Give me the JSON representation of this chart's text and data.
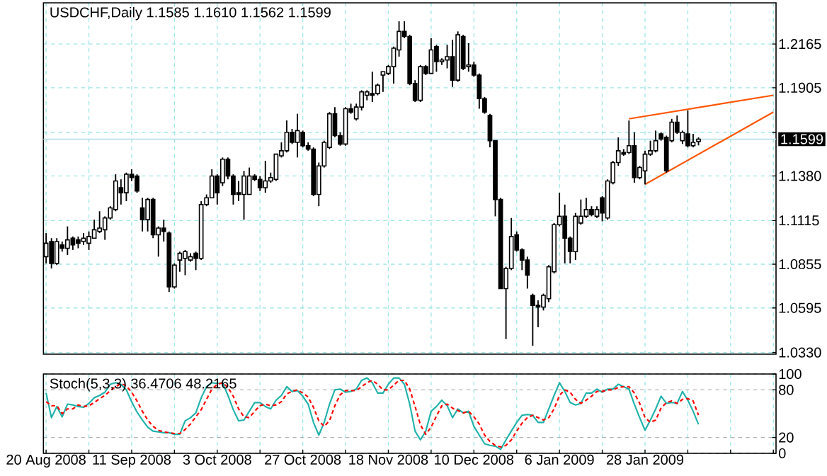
{
  "chart_data": [
    {
      "type": "candlestick",
      "title": "USDCHF,Daily 1.1585 1.1610 1.1562 1.1599",
      "categories": [
        null,
        null,
        null,
        null,
        null,
        null,
        null,
        null,
        null,
        null,
        null,
        null,
        null,
        null,
        null,
        null,
        null,
        null,
        null,
        null,
        null,
        null,
        null,
        null,
        null,
        null,
        null,
        null,
        null,
        null,
        null,
        null,
        null,
        null,
        null,
        null,
        null,
        null,
        null,
        null,
        null,
        null,
        null,
        null,
        null,
        null,
        null,
        null,
        null,
        null,
        null,
        null,
        null,
        null,
        null,
        null,
        null,
        null,
        null,
        null,
        null,
        null,
        null,
        null,
        null,
        null,
        null,
        null,
        null,
        null,
        null,
        null,
        null,
        null,
        null,
        null,
        null,
        null,
        null,
        null,
        null,
        null,
        null,
        null,
        null,
        null,
        null,
        null,
        null,
        null,
        null,
        null,
        null,
        null,
        null,
        null,
        null,
        null,
        null,
        null,
        null,
        null,
        null,
        null,
        null,
        null,
        null,
        null,
        null,
        null,
        null,
        null,
        null,
        null,
        null,
        null,
        null,
        null,
        null,
        null,
        null,
        null,
        null,
        null,
        null,
        null,
        null,
        null,
        null,
        null,
        null,
        null,
        null,
        null,
        null,
        null,
        null
      ],
      "ohlc": [
        [
          1.09,
          1.104,
          1.086,
          1.098
        ],
        [
          1.099,
          1.101,
          1.083,
          1.086
        ],
        [
          1.086,
          1.101,
          1.085,
          1.099
        ],
        [
          1.097,
          1.099,
          1.093,
          1.095
        ],
        [
          1.095,
          1.108,
          1.091,
          1.1
        ],
        [
          1.101,
          1.102,
          1.094,
          1.097
        ],
        [
          1.1,
          1.102,
          1.095,
          1.098
        ],
        [
          1.099,
          1.104,
          1.097,
          1.101
        ],
        [
          1.098,
          1.105,
          1.094,
          1.102
        ],
        [
          1.101,
          1.112,
          1.101,
          1.106
        ],
        [
          1.105,
          1.117,
          1.104,
          1.107
        ],
        [
          1.106,
          1.114,
          1.1,
          1.113
        ],
        [
          1.113,
          1.12,
          1.112,
          1.119
        ],
        [
          1.118,
          1.139,
          1.117,
          1.135
        ],
        [
          1.131,
          1.136,
          1.121,
          1.128
        ],
        [
          1.128,
          1.14,
          1.123,
          1.139
        ],
        [
          1.139,
          1.142,
          1.135,
          1.137
        ],
        [
          1.138,
          1.139,
          1.128,
          1.129
        ],
        [
          1.119,
          1.125,
          1.105,
          1.112
        ],
        [
          1.112,
          1.125,
          1.105,
          1.124
        ],
        [
          1.124,
          1.125,
          1.101,
          1.103
        ],
        [
          1.103,
          1.108,
          1.09,
          1.107
        ],
        [
          1.107,
          1.112,
          1.099,
          1.105
        ],
        [
          1.104,
          1.105,
          1.069,
          1.072
        ],
        [
          1.072,
          1.086,
          1.071,
          1.085
        ],
        [
          1.088,
          1.093,
          1.081,
          1.092
        ],
        [
          1.089,
          1.094,
          1.079,
          1.093
        ],
        [
          1.088,
          1.092,
          1.087,
          1.09
        ],
        [
          1.092,
          1.093,
          1.082,
          1.089
        ],
        [
          1.089,
          1.123,
          1.088,
          1.121
        ],
        [
          1.121,
          1.127,
          1.12,
          1.125
        ],
        [
          1.125,
          1.142,
          1.125,
          1.138
        ],
        [
          1.138,
          1.139,
          1.121,
          1.128
        ],
        [
          1.134,
          1.149,
          1.132,
          1.148
        ],
        [
          1.148,
          1.149,
          1.136,
          1.138
        ],
        [
          1.138,
          1.139,
          1.121,
          1.127
        ],
        [
          1.128,
          1.135,
          1.123,
          1.127
        ],
        [
          1.127,
          1.141,
          1.112,
          1.138
        ],
        [
          1.127,
          1.143,
          1.127,
          1.138
        ],
        [
          1.138,
          1.139,
          1.135,
          1.136
        ],
        [
          1.136,
          1.138,
          1.129,
          1.131
        ],
        [
          1.131,
          1.147,
          1.128,
          1.135
        ],
        [
          1.135,
          1.14,
          1.134,
          1.137
        ],
        [
          1.136,
          1.151,
          1.135,
          1.151
        ],
        [
          1.15,
          1.158,
          1.149,
          1.153
        ],
        [
          1.153,
          1.171,
          1.152,
          1.164
        ],
        [
          1.164,
          1.166,
          1.157,
          1.158
        ],
        [
          1.158,
          1.175,
          1.149,
          1.165
        ],
        [
          1.164,
          1.165,
          1.155,
          1.156
        ],
        [
          1.156,
          1.158,
          1.153,
          1.154
        ],
        [
          1.154,
          1.155,
          1.126,
          1.127
        ],
        [
          1.127,
          1.146,
          1.12,
          1.144
        ],
        [
          1.144,
          1.159,
          1.143,
          1.158
        ],
        [
          1.155,
          1.176,
          1.154,
          1.175
        ],
        [
          1.175,
          1.179,
          1.161,
          1.162
        ],
        [
          1.162,
          1.164,
          1.156,
          1.157
        ],
        [
          1.157,
          1.179,
          1.156,
          1.178
        ],
        [
          1.178,
          1.181,
          1.175,
          1.176
        ],
        [
          1.172,
          1.181,
          1.171,
          1.179
        ],
        [
          1.179,
          1.189,
          1.177,
          1.188
        ],
        [
          1.186,
          1.189,
          1.183,
          1.188
        ],
        [
          1.187,
          1.2,
          1.182,
          1.186
        ],
        [
          1.187,
          1.193,
          1.186,
          1.192
        ],
        [
          1.198,
          1.2,
          1.188,
          1.2
        ],
        [
          1.199,
          1.204,
          1.198,
          1.203
        ],
        [
          1.203,
          1.215,
          1.193,
          1.214
        ],
        [
          1.213,
          1.23,
          1.209,
          1.224
        ],
        [
          1.224,
          1.23,
          1.22,
          1.221
        ],
        [
          1.221,
          1.222,
          1.192,
          1.193
        ],
        [
          1.193,
          1.195,
          1.182,
          1.183
        ],
        [
          1.183,
          1.204,
          1.182,
          1.203
        ],
        [
          1.203,
          1.204,
          1.198,
          1.199
        ],
        [
          1.199,
          1.22,
          1.199,
          1.213
        ],
        [
          1.215,
          1.216,
          1.2,
          1.206
        ],
        [
          1.206,
          1.208,
          1.204,
          1.207
        ],
        [
          1.207,
          1.216,
          1.202,
          1.209
        ],
        [
          1.209,
          1.219,
          1.191,
          1.195
        ],
        [
          1.195,
          1.224,
          1.194,
          1.222
        ],
        [
          1.221,
          1.222,
          1.201,
          1.202
        ],
        [
          1.203,
          1.217,
          1.2,
          1.204
        ],
        [
          1.204,
          1.206,
          1.197,
          1.198
        ],
        [
          1.198,
          1.199,
          1.178,
          1.184
        ],
        [
          1.184,
          1.185,
          1.175,
          1.176
        ],
        [
          1.174,
          1.175,
          1.155,
          1.159
        ],
        [
          1.159,
          1.159,
          1.114,
          1.124
        ],
        [
          1.124,
          1.125,
          1.071,
          1.071
        ],
        [
          1.071,
          1.084,
          1.041,
          1.083
        ],
        [
          1.083,
          1.113,
          1.082,
          1.102
        ],
        [
          1.103,
          1.105,
          1.093,
          1.094
        ],
        [
          1.094,
          1.095,
          1.082,
          1.088
        ],
        [
          1.088,
          1.09,
          1.071,
          1.079
        ],
        [
          1.067,
          1.068,
          1.037,
          1.061
        ],
        [
          1.061,
          1.064,
          1.048,
          1.06
        ],
        [
          1.06,
          1.068,
          1.058,
          1.067
        ],
        [
          1.065,
          1.085,
          1.063,
          1.084
        ],
        [
          1.081,
          1.11,
          1.08,
          1.109
        ],
        [
          1.109,
          1.128,
          1.108,
          1.114
        ],
        [
          1.114,
          1.121,
          1.086,
          1.101
        ],
        [
          1.101,
          1.102,
          1.086,
          1.093
        ],
        [
          1.093,
          1.116,
          1.088,
          1.114
        ],
        [
          1.11,
          1.124,
          1.109,
          1.114
        ],
        [
          1.114,
          1.125,
          1.113,
          1.118
        ],
        [
          1.118,
          1.12,
          1.114,
          1.115
        ],
        [
          1.114,
          1.12,
          1.113,
          1.118
        ],
        [
          1.125,
          1.126,
          1.111,
          1.116
        ],
        [
          1.113,
          1.136,
          1.112,
          1.135
        ],
        [
          1.134,
          1.147,
          1.133,
          1.146
        ],
        [
          1.146,
          1.161,
          1.144,
          1.153
        ],
        [
          1.152,
          1.154,
          1.15,
          1.151
        ],
        [
          1.152,
          1.171,
          1.151,
          1.156
        ],
        [
          1.156,
          1.164,
          1.134,
          1.137
        ],
        [
          1.137,
          1.144,
          1.136,
          1.143
        ],
        [
          1.141,
          1.153,
          1.133,
          1.151
        ],
        [
          1.151,
          1.159,
          1.15,
          1.153
        ],
        [
          1.153,
          1.165,
          1.152,
          1.159
        ],
        [
          1.163,
          1.164,
          1.159,
          1.16
        ],
        [
          1.161,
          1.162,
          1.14,
          1.141
        ],
        [
          1.159,
          1.172,
          1.158,
          1.17
        ],
        [
          1.17,
          1.174,
          1.163,
          1.164
        ],
        [
          1.159,
          1.165,
          1.157,
          1.164
        ],
        [
          1.163,
          1.177,
          1.155,
          1.156
        ],
        [
          1.156,
          1.163,
          1.155,
          1.158
        ],
        [
          1.1585,
          1.161,
          1.1562,
          1.1599
        ],
        null,
        null,
        null,
        null,
        null,
        null,
        null,
        null,
        null,
        null,
        null,
        null,
        null,
        null
      ],
      "series": [
        {
          "type": "line",
          "color": "#ff5500",
          "values": [
            null,
            null,
            null,
            null,
            null,
            null,
            null,
            null,
            null,
            null,
            null,
            null,
            null,
            null,
            null,
            null,
            null,
            null,
            null,
            null,
            null,
            null,
            null,
            null,
            null,
            null,
            null,
            null,
            null,
            null,
            null,
            null,
            null,
            null,
            null,
            null,
            null,
            null,
            null,
            null,
            null,
            null,
            null,
            null,
            null,
            null,
            null,
            null,
            null,
            null,
            null,
            null,
            null,
            null,
            null,
            null,
            null,
            null,
            null,
            null,
            null,
            null,
            null,
            null,
            null,
            null,
            null,
            null,
            null,
            null,
            null,
            null,
            null,
            null,
            null,
            null,
            null,
            null,
            null,
            null,
            null,
            null,
            null,
            null,
            null,
            null,
            null,
            null,
            null,
            null,
            null,
            null,
            null,
            null,
            null,
            null,
            null,
            null,
            null,
            null,
            null,
            null,
            null,
            null,
            null,
            null,
            null,
            null,
            null,
            1.172,
            null,
            null,
            null,
            null,
            null,
            null,
            null,
            null,
            null,
            null,
            null,
            null,
            null,
            null,
            null,
            null,
            null,
            null,
            null,
            null,
            null,
            null,
            null,
            null,
            null,
            null,
            1.186
          ]
        },
        {
          "type": "line",
          "color": "#ff5500",
          "values": [
            null,
            null,
            null,
            null,
            null,
            null,
            null,
            null,
            null,
            null,
            null,
            null,
            null,
            null,
            null,
            null,
            null,
            null,
            null,
            null,
            null,
            null,
            null,
            null,
            null,
            null,
            null,
            null,
            null,
            null,
            null,
            null,
            null,
            null,
            null,
            null,
            null,
            null,
            null,
            null,
            null,
            null,
            null,
            null,
            null,
            null,
            null,
            null,
            null,
            null,
            null,
            null,
            null,
            null,
            null,
            null,
            null,
            null,
            null,
            null,
            null,
            null,
            null,
            null,
            null,
            null,
            null,
            null,
            null,
            null,
            null,
            null,
            null,
            null,
            null,
            null,
            null,
            null,
            null,
            null,
            null,
            null,
            null,
            null,
            null,
            null,
            null,
            null,
            null,
            null,
            null,
            null,
            null,
            null,
            null,
            null,
            null,
            null,
            null,
            null,
            null,
            null,
            null,
            null,
            null,
            null,
            null,
            null,
            null,
            null,
            null,
            null,
            1.133,
            null,
            null,
            null,
            null,
            null,
            null,
            null,
            null,
            null,
            null,
            null,
            null,
            null,
            null,
            null,
            null,
            null,
            null,
            null,
            null,
            null,
            null,
            null,
            1.176
          ]
        }
      ],
      "ylim": [
        1.032,
        1.241
      ],
      "yticks": [
        {
          "value": 1.033,
          "label": "1.0330"
        },
        {
          "value": 1.0595,
          "label": "1.0595"
        },
        {
          "value": 1.0855,
          "label": "1.0855"
        },
        {
          "value": 1.1115,
          "label": "1.1115"
        },
        {
          "value": 1.138,
          "label": "1.1380"
        },
        {
          "value": 1.164,
          "label": null
        },
        {
          "value": 1.1905,
          "label": "1.1905"
        },
        {
          "value": 1.2165,
          "label": "1.2165"
        }
      ],
      "ref_lines": [
        {
          "axis": "y",
          "value": 1.1599,
          "label": "1.1599",
          "color": "#b0dce6"
        }
      ],
      "grid": true,
      "tick_labels": "y"
    },
    {
      "type": "line",
      "title": "Stoch(5,3,3) 36.4706 48.2165",
      "categories": [
        "20 Aug 2008",
        null,
        null,
        null,
        null,
        null,
        null,
        null,
        null,
        null,
        null,
        null,
        null,
        null,
        null,
        null,
        "11 Sep 2008",
        null,
        null,
        null,
        null,
        null,
        null,
        null,
        null,
        null,
        null,
        null,
        null,
        null,
        null,
        null,
        "3 Oct 2008",
        null,
        null,
        null,
        null,
        null,
        null,
        null,
        null,
        null,
        null,
        null,
        null,
        null,
        null,
        null,
        "27 Oct 2008",
        null,
        null,
        null,
        null,
        null,
        null,
        null,
        null,
        null,
        null,
        null,
        null,
        null,
        null,
        null,
        "18 Nov 2008",
        null,
        null,
        null,
        null,
        null,
        null,
        null,
        null,
        null,
        null,
        null,
        null,
        null,
        null,
        null,
        "10 Dec 2008",
        null,
        null,
        null,
        null,
        null,
        null,
        null,
        null,
        null,
        null,
        null,
        null,
        null,
        null,
        null,
        "6 Jan 2009",
        null,
        null,
        null,
        null,
        null,
        null,
        null,
        null,
        null,
        null,
        null,
        null,
        null,
        null,
        null,
        "28 Jan 2009",
        null,
        null,
        null,
        null,
        null,
        null,
        null,
        null,
        null,
        null,
        null,
        null,
        null,
        null,
        null,
        null,
        null,
        null,
        null,
        null,
        null,
        null,
        null,
        null
      ],
      "series": [
        {
          "color": "#20b2aa",
          "line_style": "solid",
          "values": [
            76,
            45,
            59,
            46,
            62,
            61,
            59,
            58,
            63,
            70,
            73,
            77,
            87,
            89,
            87,
            80,
            65,
            52,
            42,
            33,
            28,
            27,
            26,
            26,
            24,
            24,
            41,
            45,
            51,
            70,
            84,
            89,
            88,
            89,
            73,
            55,
            41,
            42,
            53,
            64,
            64,
            59,
            56,
            67,
            73,
            84,
            78,
            79,
            72,
            62,
            39,
            23,
            39,
            62,
            80,
            81,
            77,
            78,
            81,
            92,
            95,
            89,
            76,
            76,
            87,
            95,
            95,
            87,
            62,
            28,
            17,
            28,
            53,
            59,
            67,
            60,
            45,
            56,
            51,
            53,
            34,
            23,
            12,
            10,
            9,
            5,
            17,
            28,
            39,
            48,
            49,
            48,
            39,
            39,
            56,
            73,
            89,
            78,
            64,
            61,
            63,
            76,
            76,
            81,
            77,
            81,
            81,
            87,
            84,
            81,
            62,
            45,
            29,
            42,
            56,
            72,
            63,
            64,
            63,
            78,
            67,
            53,
            36.4706,
            null,
            null,
            null,
            null,
            null,
            null,
            null,
            null,
            null,
            null,
            null,
            null,
            null,
            null
          ]
        },
        {
          "color": "#ff0000",
          "line_style": "dashed",
          "values": [
            65,
            60,
            60,
            50,
            56,
            56,
            61,
            59,
            60,
            64,
            69,
            73,
            79,
            84,
            88,
            85,
            77,
            66,
            53,
            42,
            34,
            29,
            27,
            26,
            25,
            25,
            30,
            37,
            46,
            55,
            68,
            81,
            87,
            89,
            83,
            72,
            56,
            46,
            45,
            53,
            60,
            62,
            60,
            61,
            65,
            75,
            78,
            80,
            76,
            71,
            58,
            41,
            34,
            41,
            60,
            74,
            79,
            79,
            79,
            84,
            89,
            92,
            87,
            80,
            80,
            86,
            92,
            92,
            81,
            59,
            36,
            24,
            33,
            47,
            60,
            62,
            57,
            54,
            51,
            53,
            46,
            37,
            23,
            15,
            10,
            8,
            10,
            17,
            28,
            38,
            45,
            48,
            45,
            42,
            45,
            56,
            73,
            80,
            77,
            68,
            63,
            67,
            72,
            78,
            78,
            80,
            80,
            83,
            84,
            84,
            76,
            63,
            45,
            39,
            42,
            57,
            64,
            66,
            63,
            68,
            69,
            66,
            48.2165,
            null,
            null,
            null,
            null,
            null,
            null,
            null,
            null,
            null,
            null,
            null,
            null,
            null,
            null
          ]
        }
      ],
      "ylim": [
        0,
        100
      ],
      "yticks": [
        0,
        20,
        80,
        100
      ],
      "grid": true
    }
  ]
}
